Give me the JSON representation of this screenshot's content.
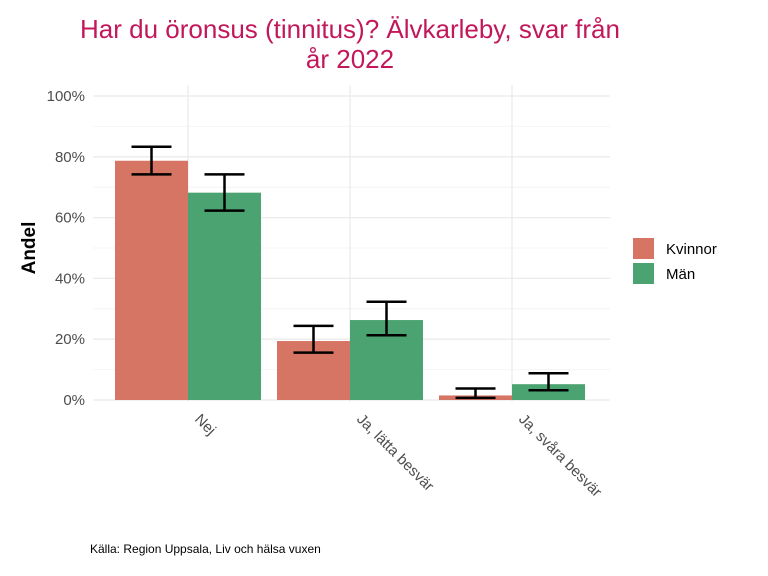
{
  "chart_data": {
    "type": "bar",
    "title_lines": [
      "Har du öronsus (tinnitus)? Älvkarleby, svar från",
      "år 2022"
    ],
    "ylabel": "Andel",
    "xlabel": "",
    "categories": [
      "Nej",
      "Ja, lätta besvär",
      "Ja, svåra besvär"
    ],
    "ylim": [
      0,
      100
    ],
    "yticks": [
      0,
      20,
      40,
      60,
      80,
      100
    ],
    "ytick_labels": [
      "0%",
      "20%",
      "40%",
      "60%",
      "80%",
      "100%"
    ],
    "series": [
      {
        "name": "Kvinnor",
        "color": "#D77565",
        "values": [
          78.7,
          19.4,
          1.5
        ],
        "ci_low": [
          74.2,
          15.6,
          0.7
        ],
        "ci_high": [
          83.3,
          24.4,
          3.8
        ]
      },
      {
        "name": "Män",
        "color": "#4BA371",
        "values": [
          68.2,
          26.3,
          5.2
        ],
        "ci_low": [
          62.3,
          21.3,
          3.2
        ],
        "ci_high": [
          74.2,
          32.3,
          8.8
        ]
      }
    ],
    "legend_position": "right",
    "grid": true,
    "caption": "Källa: Region Uppsala, Liv och hälsa vuxen",
    "title_color": "#C2185B"
  }
}
